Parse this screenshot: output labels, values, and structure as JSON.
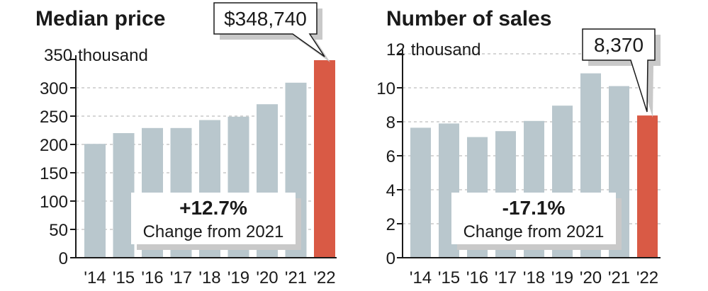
{
  "colors": {
    "bar": "#b9c7cd",
    "highlight": "#d95a45",
    "shadow": "#c9c9c9"
  },
  "chart_data": [
    {
      "type": "bar",
      "title": "Median price",
      "categories": [
        "'14",
        "'15",
        "'16",
        "'17",
        "'18",
        "'19",
        "'20",
        "'21",
        "'22"
      ],
      "values": [
        201000,
        220000,
        229000,
        229000,
        243000,
        249000,
        271000,
        309000,
        348740
      ],
      "ylim": [
        0,
        350000
      ],
      "ytick_values": [
        0,
        50000,
        100000,
        150000,
        200000,
        250000,
        300000,
        350000
      ],
      "ytick_labels": [
        "0",
        "50",
        "100",
        "150",
        "200",
        "250",
        "300",
        "350"
      ],
      "unit_label": "thousand",
      "highlight_index": 8,
      "callout": "$348,740",
      "change_value": "+12.7%",
      "change_label": "Change from 2021",
      "grid": true
    },
    {
      "type": "bar",
      "title": "Number of sales",
      "categories": [
        "'14",
        "'15",
        "'16",
        "'17",
        "'18",
        "'19",
        "'20",
        "'21",
        "'22"
      ],
      "values": [
        7650,
        7900,
        7100,
        7450,
        8050,
        8950,
        10850,
        10100,
        8370
      ],
      "ylim": [
        0,
        12000
      ],
      "ytick_values": [
        0,
        2000,
        4000,
        6000,
        8000,
        10000,
        12000
      ],
      "ytick_labels": [
        "0",
        "2",
        "4",
        "6",
        "8",
        "10",
        "12"
      ],
      "unit_label": "thousand",
      "highlight_index": 8,
      "callout": "8,370",
      "change_value": "-17.1%",
      "change_label": "Change from 2021",
      "grid": true
    }
  ]
}
